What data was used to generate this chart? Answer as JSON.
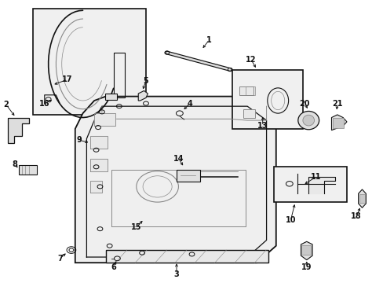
{
  "bg_color": "#ffffff",
  "fig_width": 4.89,
  "fig_height": 3.6,
  "dpi": 100,
  "black": "#111111",
  "gray": "#888888",
  "light_gray": "#dddddd",
  "panel_fill": "#efefef",
  "inset_fill": "#f0f0f0"
}
